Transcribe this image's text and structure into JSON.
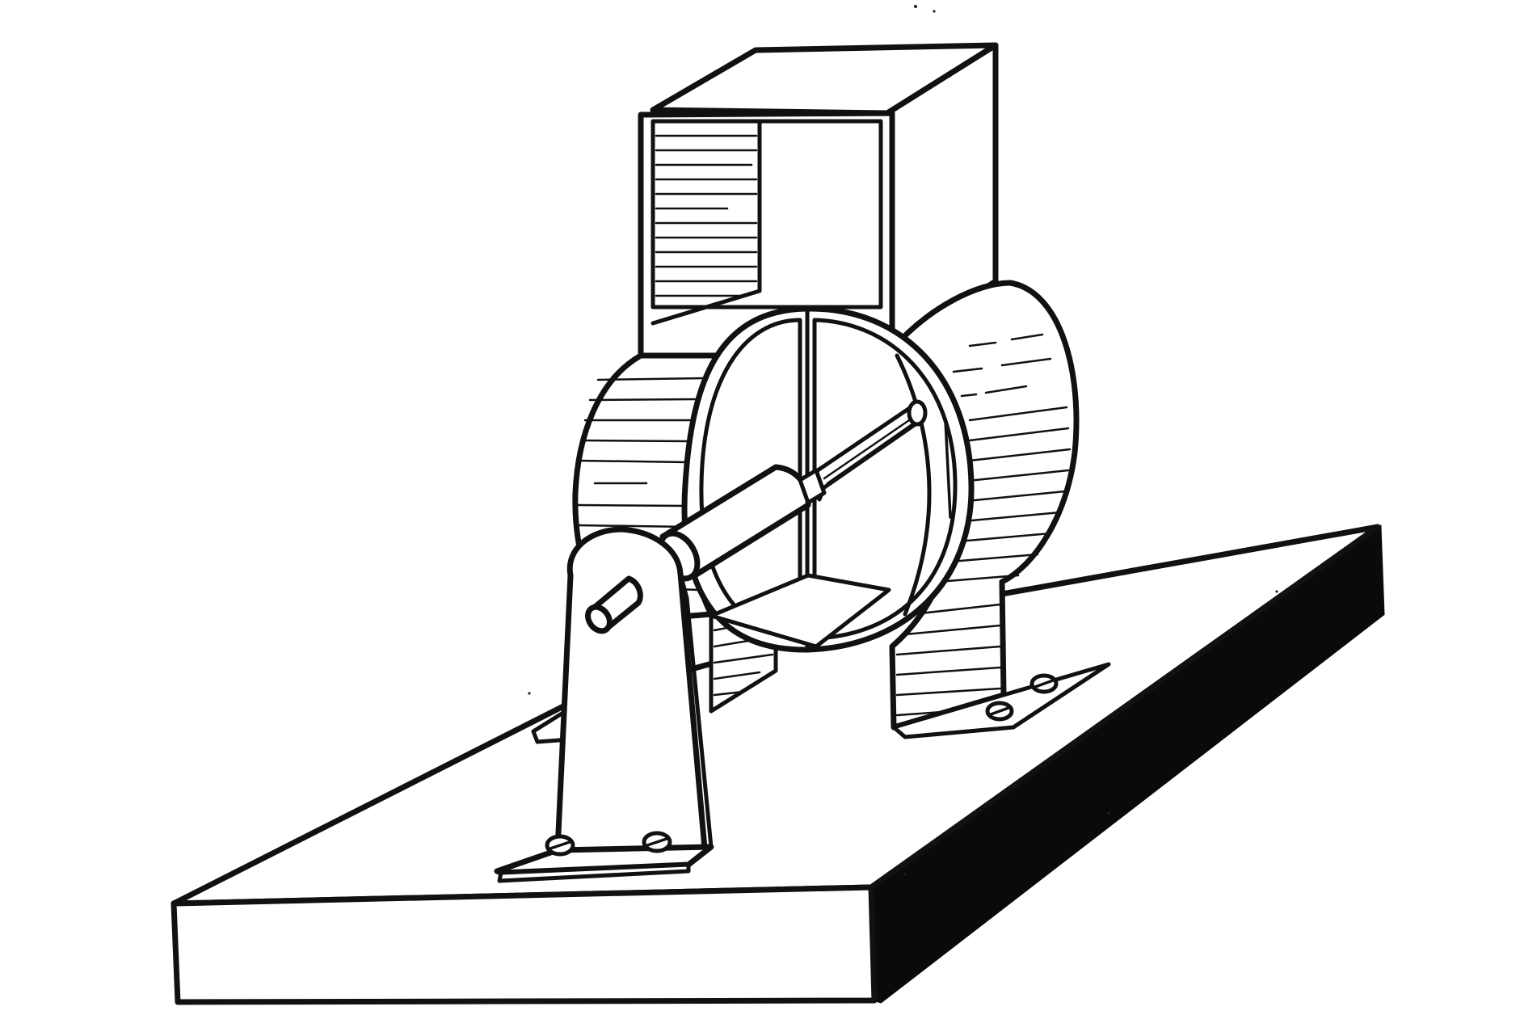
{
  "figure": {
    "subject": "dynamo-engraving",
    "colors": {
      "ink": "#111111",
      "paper": "#ffffff",
      "shadow": "#0a0a0a"
    },
    "parts": [
      "baseboard",
      "magnet-yoke",
      "field-housing",
      "armature",
      "shaft",
      "bearing-pedestal",
      "mounting-bracket",
      "screw-heads"
    ]
  }
}
